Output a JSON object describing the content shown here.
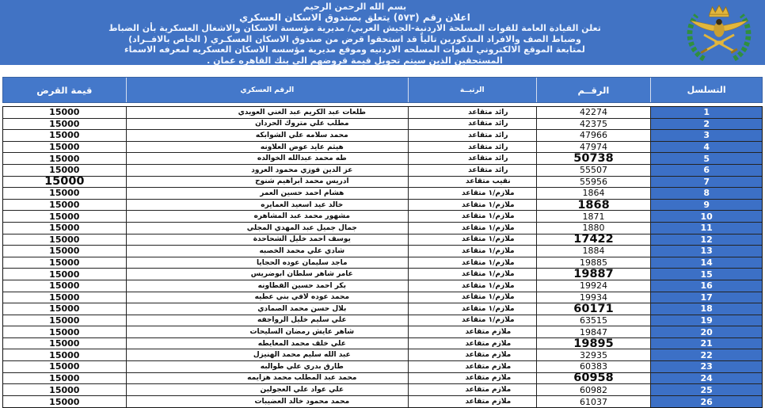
{
  "banner": {
    "basmala": "بسم الله الرحمن الرحيم",
    "title": "اعلان رقم (٥٧٣) يتعلق بصندوق الاسكان العسكري",
    "body_lines": [
      "تعلن القيادة العامة للقوات المسلحة الاردنية-الجيش العربي/ مديرية مؤسسة الاسكان والاشغال العسكرية بأن الضباط",
      "وضباط الصف والافراد المذكورين تالياً قد استحقوا قرض من صندوق الاسكان العسكـري ( الخاص بالافــراد)",
      "لمتابعة الموقع الالكتروني للقوات المسلحه الاردنيه وموقع مديرية مؤسسه الاسكان العسكريه لمعرفه الاسماء",
      "المستحقين الذين سيتم تحويل قيمة قروضهم الى بنك القاهره عمان ."
    ],
    "emblem": "jordan-armed-forces-emblem"
  },
  "colors": {
    "band_blue": "#4173c4",
    "table_header_blue": "#4478ca",
    "serial_column_blue": "#3c70c6",
    "grid_line": "#232323",
    "wreath_green": "#2f8f3e",
    "emblem_gold": "#e2b63c"
  },
  "table": {
    "columns": [
      {
        "key": "value",
        "label": "قيمة القرض"
      },
      {
        "key": "name",
        "label": "الرقم العسكري"
      },
      {
        "key": "rank",
        "label": "الرتبــة"
      },
      {
        "key": "number",
        "label": "الرقــم"
      },
      {
        "key": "serial",
        "label": "التسلسل"
      }
    ],
    "rows": [
      {
        "serial": "1",
        "number": "42274",
        "rank": "رائد متقاعد",
        "name": "طلعات عبد الكريم عبد الغني العويدي",
        "value": "15000",
        "big_number": false,
        "big_value": false
      },
      {
        "serial": "2",
        "number": "42375",
        "rank": "رائد متقاعد",
        "name": "مطلب علي متروك الحردان",
        "value": "15000",
        "big_number": false,
        "big_value": false
      },
      {
        "serial": "3",
        "number": "47966",
        "rank": "رائد متقاعد",
        "name": "محمد سلامه علي الشوابكه",
        "value": "15000",
        "big_number": false,
        "big_value": false
      },
      {
        "serial": "4",
        "number": "47974",
        "rank": "رائد متقاعد",
        "name": "هيثم عايد عوض العلاونه",
        "value": "15000",
        "big_number": false,
        "big_value": false
      },
      {
        "serial": "5",
        "number": "50738",
        "rank": "رائد متقاعد",
        "name": "طه محمد عبدالله الخوالده",
        "value": "15000",
        "big_number": true,
        "big_value": false
      },
      {
        "serial": "6",
        "number": "55507",
        "rank": "رائد متقاعد",
        "name": "عز الدين فوزي محمود العرود",
        "value": "15000",
        "big_number": false,
        "big_value": false
      },
      {
        "serial": "7",
        "number": "55956",
        "rank": "نقيب متقاعد",
        "name": "ادريس محمد ابراهيم شنوح",
        "value": "15000",
        "big_number": false,
        "big_value": true
      },
      {
        "serial": "8",
        "number": "1864",
        "rank": "ملازم/١ متقاعد",
        "name": "هشام احمد حسين العمر",
        "value": "15000",
        "big_number": false,
        "big_value": false
      },
      {
        "serial": "9",
        "number": "1868",
        "rank": "ملازم/١ متقاعد",
        "name": "خالد عيد اسعيد العمايره",
        "value": "15000",
        "big_number": true,
        "big_value": false
      },
      {
        "serial": "10",
        "number": "1871",
        "rank": "ملازم/١ متقاعد",
        "name": "مشهور محمد عبد المشاهره",
        "value": "15000",
        "big_number": false,
        "big_value": false
      },
      {
        "serial": "11",
        "number": "1880",
        "rank": "ملازم/١ متقاعد",
        "name": "جمال جميل عبد المهدي المجلي",
        "value": "15000",
        "big_number": false,
        "big_value": false
      },
      {
        "serial": "12",
        "number": "17422",
        "rank": "ملازم/١ متقاعد",
        "name": "يوسف احمد خليل الشحاحدة",
        "value": "15000",
        "big_number": true,
        "big_value": false
      },
      {
        "serial": "13",
        "number": "1884",
        "rank": "ملازم/١ متقاعد",
        "name": "شادي علي محمد الخصبه",
        "value": "15000",
        "big_number": false,
        "big_value": false
      },
      {
        "serial": "14",
        "number": "19885",
        "rank": "ملازم/١ متقاعد",
        "name": "ماجد سليمان عوده الحجايا",
        "value": "15000",
        "big_number": false,
        "big_value": false
      },
      {
        "serial": "15",
        "number": "19887",
        "rank": "ملازم/١ متقاعد",
        "name": "عامر شاهر سلطان ابوضريس",
        "value": "15000",
        "big_number": true,
        "big_value": false
      },
      {
        "serial": "16",
        "number": "19924",
        "rank": "ملازم/١ متقاعد",
        "name": "بكر احمد حسين القطاونه",
        "value": "15000",
        "big_number": false,
        "big_value": false
      },
      {
        "serial": "17",
        "number": "19934",
        "rank": "ملازم/١ متقاعد",
        "name": "محمد عوده لافي بني عطيه",
        "value": "15000",
        "big_number": false,
        "big_value": false
      },
      {
        "serial": "18",
        "number": "60171",
        "rank": "ملازم/١ متقاعد",
        "name": "بلال حسن محمد الصمادي",
        "value": "15000",
        "big_number": true,
        "big_value": false
      },
      {
        "serial": "19",
        "number": "63515",
        "rank": "ملازم/١ متقاعد",
        "name": "علي سليم خليل الرواجفه",
        "value": "15000",
        "big_number": false,
        "big_value": false
      },
      {
        "serial": "20",
        "number": "19847",
        "rank": "ملازم متقاعد",
        "name": "شاهر عايش رمضان السليحات",
        "value": "15000",
        "big_number": false,
        "big_value": false
      },
      {
        "serial": "21",
        "number": "19895",
        "rank": "ملازم متقاعد",
        "name": "علي خلف محمد المعايطه",
        "value": "15000",
        "big_number": true,
        "big_value": false
      },
      {
        "serial": "22",
        "number": "32935",
        "rank": "ملازم متقاعد",
        "name": "عبد الله سليم محمد الهنيزل",
        "value": "15000",
        "big_number": false,
        "big_value": false
      },
      {
        "serial": "23",
        "number": "60383",
        "rank": "ملازم متقاعد",
        "name": "طارق بدري علي طوالبه",
        "value": "15000",
        "big_number": false,
        "big_value": false
      },
      {
        "serial": "24",
        "number": "60958",
        "rank": "ملازم متقاعد",
        "name": "محمد عبد المطلب محمد هزايمه",
        "value": "15000",
        "big_number": true,
        "big_value": false
      },
      {
        "serial": "25",
        "number": "60982",
        "rank": "ملازم متقاعد",
        "name": "علي عواد علي العجولين",
        "value": "15000",
        "big_number": false,
        "big_value": false
      },
      {
        "serial": "26",
        "number": "61037",
        "rank": "ملازم متقاعد",
        "name": "محمد محمود خالد العضيبات",
        "value": "15000",
        "big_number": false,
        "big_value": false
      }
    ]
  }
}
